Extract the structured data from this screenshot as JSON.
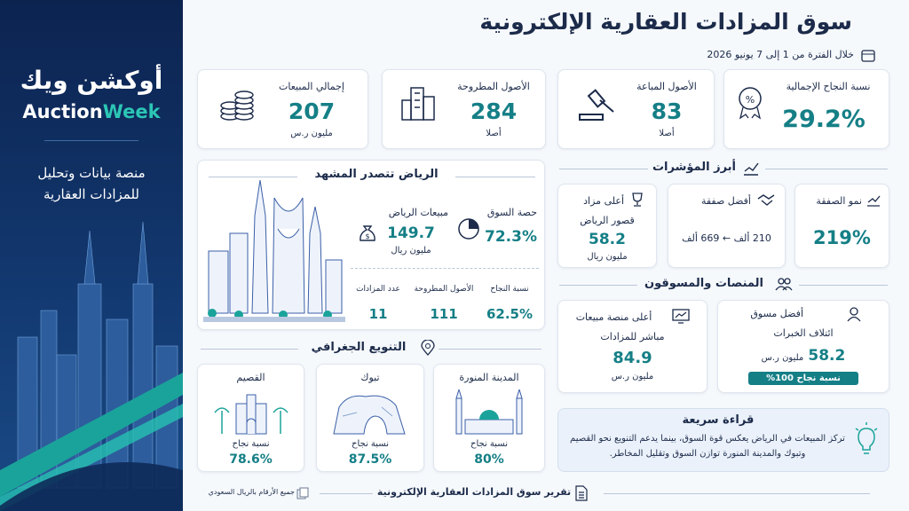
{
  "sidebar": {
    "logo_ar": "أوكشن ويك",
    "logo_en": [
      "Auction",
      "Week"
    ],
    "tagline": [
      "منصة بيانات وتحليل",
      "للمزادات العقارية"
    ]
  },
  "header": {
    "title": "سوق المزادات العقارية الإلكترونية",
    "period": "خلال الفترة من 1 إلى 7 يونيو 2026"
  },
  "kpis": [
    {
      "label": "نسبة النجاح الإجمالية",
      "value": "29.2%"
    },
    {
      "label": "الأصول المباعة",
      "value": "83",
      "unit": "أصلا"
    },
    {
      "label": "الأصول المطروحة",
      "value": "284",
      "unit": "أصلا"
    },
    {
      "label": "إجمالي المبيعات",
      "value": "207",
      "unit": "مليون ر.س"
    }
  ],
  "riyadh": {
    "title": "الرياض تتصدر المشهد",
    "stats": [
      {
        "label": "حصة السوق",
        "value": "72.3%"
      },
      {
        "label": "مبيعات الرياض",
        "value": "149.7",
        "unit": "مليون ريال"
      },
      {
        "label": "نسبة النجاح",
        "value": "62.5%"
      },
      {
        "label": "الأصول المطروحة",
        "value": "111"
      },
      {
        "label": "عدد المزادات",
        "value": "11"
      }
    ]
  },
  "indicators": {
    "title": "أبرز المؤشرات",
    "cards": [
      {
        "label": "نمو الصفقة",
        "value": "219%"
      },
      {
        "label": "أفضل صفقة",
        "value": "210 ألف ← 669 ألف"
      },
      {
        "label": "أعلى مزاد",
        "name": "قصور الرياض",
        "value": "58.2",
        "unit": "مليون ريال"
      }
    ]
  },
  "platforms": {
    "title": "المنصات والمسوقون",
    "cards": [
      {
        "label": "أفضل مسوق",
        "name": "ائتلاف الخبرات",
        "value": "58.2",
        "unit": "مليون ر.س",
        "badge": "نسبة نجاح 100%"
      },
      {
        "label": "أعلى منصة مبيعات",
        "name": "مباشر للمزادات",
        "value": "84.9",
        "unit": "مليون ر.س"
      }
    ]
  },
  "geography": {
    "title": "التنويع الجغرافي",
    "regions": [
      {
        "name": "المدينة المنورة",
        "label": "نسبة نجاح",
        "value": "80%"
      },
      {
        "name": "تبوك",
        "label": "نسبة نجاح",
        "value": "87.5%"
      },
      {
        "name": "القصيم",
        "label": "نسبة نجاح",
        "value": "78.6%"
      }
    ]
  },
  "quick_read": {
    "title": "قراءة سريعة",
    "text": "تركز المبيعات في الرياض يعكس قوة السوق، بينما يدعم التنويع نحو القصيم وتبوك والمدينة المنورة توازن السوق وتقليل المخاطر."
  },
  "footer": {
    "report": "تقرير سوق المزادات العقارية الإلكترونية",
    "note": "جميع الأرقام بالريال السعودي"
  }
}
